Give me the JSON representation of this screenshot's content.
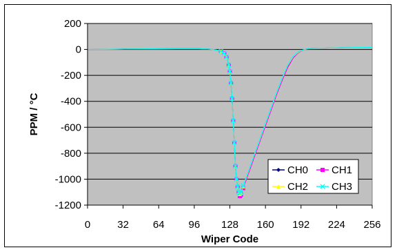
{
  "chart_data": {
    "type": "line",
    "title": "",
    "xlabel": "Wiper Code",
    "ylabel": "PPM / °C",
    "xlim": [
      0,
      256
    ],
    "ylim": [
      -1200,
      200
    ],
    "xticks": [
      0,
      32,
      64,
      96,
      128,
      160,
      192,
      224,
      256
    ],
    "yticks": [
      200,
      0,
      -200,
      -400,
      -600,
      -800,
      -1000,
      -1200
    ],
    "grid": "horizontal",
    "plot_background": "#c0c0c0",
    "legend_position": "bottom-right",
    "x": [
      0,
      20,
      40,
      60,
      80,
      100,
      110,
      116,
      120,
      123,
      125,
      127,
      128,
      129,
      130,
      131,
      132,
      133,
      134,
      135,
      136,
      137,
      138,
      140,
      145,
      150,
      155,
      160,
      165,
      170,
      175,
      180,
      185,
      190,
      195,
      200,
      210,
      220,
      230,
      240,
      256
    ],
    "series": [
      {
        "name": "CH0",
        "color": "#000080",
        "marker": "diamond",
        "values": [
          0,
          2,
          4,
          5,
          6,
          6,
          3,
          -5,
          -15,
          -30,
          -60,
          -120,
          -170,
          -260,
          -380,
          -550,
          -720,
          -900,
          -1000,
          -1060,
          -1100,
          -1120,
          -1110,
          -1060,
          -940,
          -820,
          -700,
          -580,
          -460,
          -340,
          -230,
          -130,
          -60,
          -20,
          0,
          8,
          10,
          12,
          14,
          15,
          16
        ]
      },
      {
        "name": "CH1",
        "color": "#ff00ff",
        "marker": "square",
        "values": [
          0,
          2,
          4,
          5,
          6,
          6,
          3,
          -5,
          -15,
          -30,
          -60,
          -120,
          -170,
          -260,
          -380,
          -550,
          -720,
          -900,
          -1000,
          -1060,
          -1100,
          -1130,
          -1120,
          -1070,
          -950,
          -830,
          -710,
          -590,
          -470,
          -350,
          -240,
          -140,
          -65,
          -22,
          0,
          8,
          10,
          12,
          14,
          15,
          16
        ]
      },
      {
        "name": "CH2",
        "color": "#ffff00",
        "marker": "triangle",
        "values": [
          0,
          2,
          4,
          5,
          6,
          6,
          3,
          -5,
          -15,
          -30,
          -60,
          -120,
          -170,
          -260,
          -380,
          -550,
          -720,
          -900,
          -1000,
          -1060,
          -1100,
          -1115,
          -1105,
          -1055,
          -935,
          -815,
          -695,
          -575,
          -455,
          -335,
          -225,
          -125,
          -55,
          -18,
          0,
          8,
          10,
          12,
          14,
          15,
          16
        ]
      },
      {
        "name": "CH3",
        "color": "#00ffff",
        "marker": "x",
        "values": [
          0,
          2,
          4,
          5,
          6,
          6,
          3,
          -5,
          -15,
          -30,
          -60,
          -120,
          -170,
          -260,
          -380,
          -550,
          -720,
          -900,
          -1000,
          -1060,
          -1100,
          -1110,
          -1100,
          -1050,
          -930,
          -810,
          -690,
          -570,
          -450,
          -330,
          -220,
          -120,
          -50,
          -15,
          0,
          8,
          10,
          12,
          14,
          15,
          16
        ]
      }
    ]
  }
}
